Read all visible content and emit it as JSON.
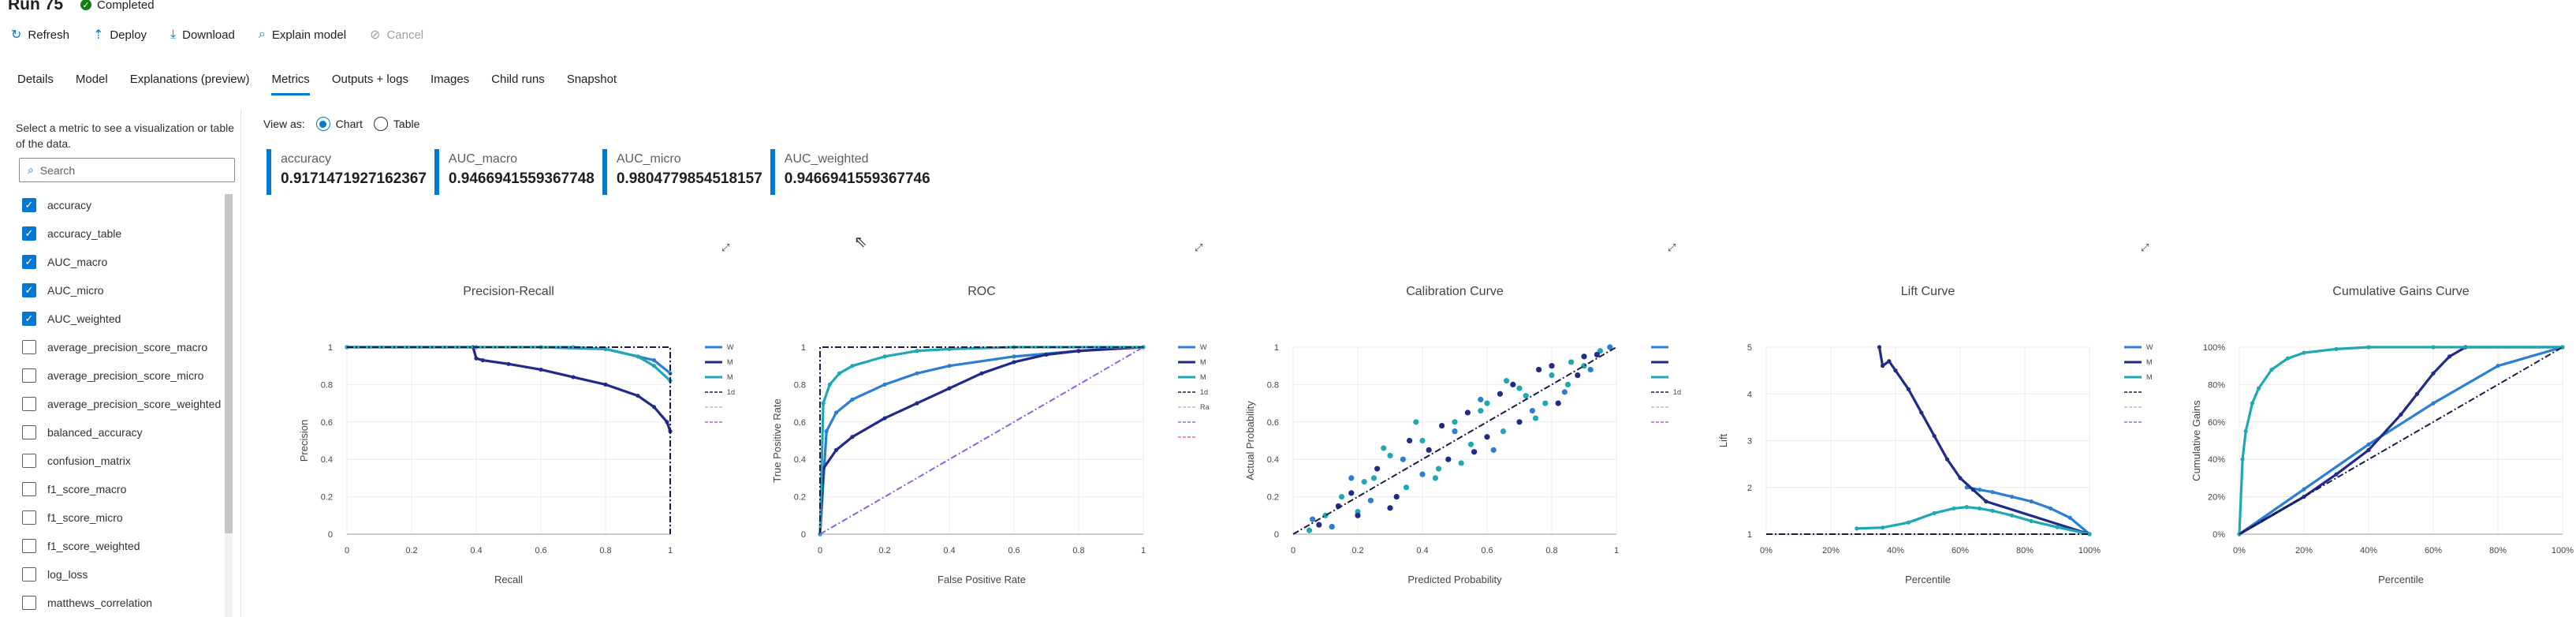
{
  "run": {
    "title": "Run 75",
    "status": "Completed"
  },
  "toolbar": {
    "refresh": "Refresh",
    "deploy": "Deploy",
    "download": "Download",
    "explain": "Explain model",
    "cancel": "Cancel"
  },
  "tabs": [
    "Details",
    "Model",
    "Explanations (preview)",
    "Metrics",
    "Outputs + logs",
    "Images",
    "Child runs",
    "Snapshot"
  ],
  "active_tab": "Metrics",
  "sidebar": {
    "hint": "Select a metric to see a visualization or table of the data.",
    "search_placeholder": "Search",
    "metrics": [
      {
        "label": "accuracy",
        "checked": true
      },
      {
        "label": "accuracy_table",
        "checked": true
      },
      {
        "label": "AUC_macro",
        "checked": true
      },
      {
        "label": "AUC_micro",
        "checked": true
      },
      {
        "label": "AUC_weighted",
        "checked": true
      },
      {
        "label": "average_precision_score_macro",
        "checked": false
      },
      {
        "label": "average_precision_score_micro",
        "checked": false
      },
      {
        "label": "average_precision_score_weighted",
        "checked": false
      },
      {
        "label": "balanced_accuracy",
        "checked": false
      },
      {
        "label": "confusion_matrix",
        "checked": false
      },
      {
        "label": "f1_score_macro",
        "checked": false
      },
      {
        "label": "f1_score_micro",
        "checked": false
      },
      {
        "label": "f1_score_weighted",
        "checked": false
      },
      {
        "label": "log_loss",
        "checked": false
      },
      {
        "label": "matthews_correlation",
        "checked": false
      }
    ]
  },
  "view_as": {
    "label": "View as:",
    "chart": "Chart",
    "table": "Table",
    "selected": "Chart"
  },
  "cards": [
    {
      "label": "accuracy",
      "value": "0.9171471927162367"
    },
    {
      "label": "AUC_macro",
      "value": "0.9466941559367748"
    },
    {
      "label": "AUC_micro",
      "value": "0.9804779854518157"
    },
    {
      "label": "AUC_weighted",
      "value": "0.9466941559367746"
    }
  ],
  "colors": {
    "accent": "#0078d4",
    "dark_blue": "#1f2a8a",
    "teal": "#1fa8b2",
    "mid_blue": "#2a7fd4",
    "purple": "#7b68ee"
  },
  "chart_data": [
    {
      "type": "line",
      "title": "Precision-Recall",
      "xlabel": "Recall",
      "ylabel": "Precision",
      "xticks": [
        "0",
        "0.2",
        "0.4",
        "0.6",
        "0.8",
        "1"
      ],
      "yticks": [
        "0",
        "0.2",
        "0.4",
        "0.6",
        "0.8",
        "1"
      ],
      "xlim": [
        0,
        1
      ],
      "ylim": [
        0,
        1
      ],
      "legend": [
        "W",
        "M",
        "M",
        "1d",
        "",
        ""
      ],
      "series": [
        {
          "color": "#2a7fd4",
          "x": [
            0,
            0.4,
            0.6,
            0.8,
            0.95,
            1.0
          ],
          "y": [
            1,
            1,
            1,
            0.99,
            0.93,
            0.86
          ]
        },
        {
          "color": "#1f2a8a",
          "x": [
            0,
            0.39,
            0.4,
            0.42,
            0.5,
            0.6,
            0.7,
            0.8,
            0.9,
            0.95,
            0.99,
            1.0
          ],
          "y": [
            1,
            1,
            0.94,
            0.93,
            0.91,
            0.88,
            0.84,
            0.8,
            0.74,
            0.68,
            0.6,
            0.55
          ]
        },
        {
          "color": "#1fa8b2",
          "x": [
            0,
            0.6,
            0.7,
            0.8,
            0.9,
            0.95,
            1.0
          ],
          "y": [
            1,
            1,
            1,
            0.99,
            0.95,
            0.9,
            0.82
          ]
        },
        {
          "color": "#1a1a4a",
          "dash": "8,3,2,3",
          "x": [
            0,
            1,
            1
          ],
          "y": [
            1,
            1,
            0
          ]
        }
      ]
    },
    {
      "type": "line",
      "title": "ROC",
      "xlabel": "False Positive Rate",
      "ylabel": "True Positive Rate",
      "xticks": [
        "0",
        "0.2",
        "0.4",
        "0.6",
        "0.8",
        "1"
      ],
      "yticks": [
        "0",
        "0.2",
        "0.4",
        "0.6",
        "0.8",
        "1"
      ],
      "xlim": [
        0,
        1
      ],
      "ylim": [
        0,
        1
      ],
      "legend": [
        "W",
        "M",
        "M",
        "1d",
        "Ra",
        "",
        ""
      ],
      "series": [
        {
          "color": "#2a7fd4",
          "x": [
            0,
            0.02,
            0.05,
            0.1,
            0.2,
            0.3,
            0.4,
            0.6,
            0.8,
            1
          ],
          "y": [
            0,
            0.55,
            0.65,
            0.72,
            0.8,
            0.86,
            0.9,
            0.95,
            0.98,
            1
          ]
        },
        {
          "color": "#1f2a8a",
          "x": [
            0,
            0.01,
            0.05,
            0.1,
            0.2,
            0.3,
            0.4,
            0.5,
            0.6,
            0.7,
            0.8,
            1
          ],
          "y": [
            0,
            0.35,
            0.45,
            0.52,
            0.62,
            0.7,
            0.78,
            0.86,
            0.92,
            0.96,
            0.98,
            1
          ]
        },
        {
          "color": "#1fa8b2",
          "x": [
            0,
            0.01,
            0.03,
            0.06,
            0.1,
            0.2,
            0.3,
            0.4,
            0.6,
            1
          ],
          "y": [
            0,
            0.7,
            0.8,
            0.86,
            0.9,
            0.95,
            0.98,
            0.99,
            1,
            1
          ]
        },
        {
          "color": "#1a1a4a",
          "dash": "8,3,2,3",
          "x": [
            0,
            0,
            1
          ],
          "y": [
            0,
            1,
            1
          ]
        },
        {
          "color": "#7b68ee",
          "dash": "8,3,2,3",
          "x": [
            0,
            1
          ],
          "y": [
            0,
            1
          ]
        }
      ]
    },
    {
      "type": "scatter",
      "title": "Calibration Curve",
      "xlabel": "Predicted Probability",
      "ylabel": "Actual Probability",
      "xticks": [
        "0",
        "0.2",
        "0.4",
        "0.6",
        "0.8",
        "1"
      ],
      "yticks": [
        "0",
        "0.2",
        "0.4",
        "0.6",
        "0.8",
        "1"
      ],
      "xlim": [
        0,
        1
      ],
      "ylim": [
        0,
        1
      ],
      "legend": [
        "",
        "",
        "",
        "1d",
        "",
        ""
      ],
      "series": [
        {
          "color": "#1fa8b2",
          "x": [
            0.05,
            0.1,
            0.15,
            0.2,
            0.25,
            0.3,
            0.35,
            0.4,
            0.45,
            0.5,
            0.55,
            0.6,
            0.65,
            0.7,
            0.75,
            0.8,
            0.85,
            0.9,
            0.95,
            0.22,
            0.38,
            0.52,
            0.66,
            0.78,
            0.12,
            0.28,
            0.44,
            0.58,
            0.72,
            0.86
          ],
          "y": [
            0.02,
            0.1,
            0.2,
            0.12,
            0.3,
            0.42,
            0.25,
            0.5,
            0.35,
            0.6,
            0.48,
            0.7,
            0.55,
            0.78,
            0.62,
            0.85,
            0.8,
            0.9,
            0.98,
            0.28,
            0.6,
            0.38,
            0.82,
            0.7,
            0.04,
            0.46,
            0.3,
            0.66,
            0.74,
            0.92
          ]
        },
        {
          "color": "#1f2a8a",
          "x": [
            0.08,
            0.14,
            0.2,
            0.26,
            0.32,
            0.36,
            0.42,
            0.48,
            0.54,
            0.6,
            0.64,
            0.7,
            0.76,
            0.82,
            0.88,
            0.94,
            0.18,
            0.3,
            0.46,
            0.56,
            0.68,
            0.8,
            0.9
          ],
          "y": [
            0.05,
            0.15,
            0.1,
            0.35,
            0.2,
            0.5,
            0.45,
            0.4,
            0.65,
            0.52,
            0.75,
            0.6,
            0.88,
            0.7,
            0.85,
            0.96,
            0.22,
            0.14,
            0.58,
            0.44,
            0.8,
            0.9,
            0.95
          ]
        },
        {
          "color": "#2a7fd4",
          "x": [
            0.06,
            0.12,
            0.18,
            0.24,
            0.34,
            0.4,
            0.5,
            0.58,
            0.62,
            0.74,
            0.84,
            0.92,
            0.98
          ],
          "y": [
            0.08,
            0.04,
            0.3,
            0.18,
            0.4,
            0.32,
            0.55,
            0.72,
            0.45,
            0.66,
            0.76,
            0.88,
            1.0
          ]
        },
        {
          "color": "#1a1a4a",
          "dash": "8,3,2,3",
          "line": true,
          "x": [
            0,
            1
          ],
          "y": [
            0,
            1
          ]
        }
      ]
    },
    {
      "type": "line",
      "title": "Lift Curve",
      "xlabel": "Percentile",
      "ylabel": "Lift",
      "xticks": [
        "0%",
        "20%",
        "40%",
        "60%",
        "80%",
        "100%"
      ],
      "yticks": [
        "1",
        "2",
        "3",
        "4",
        "5"
      ],
      "xlim": [
        0,
        100
      ],
      "ylim": [
        1,
        5
      ],
      "legend": [
        "W",
        "M",
        "M",
        "",
        "",
        ""
      ],
      "series": [
        {
          "color": "#2a7fd4",
          "x": [
            62,
            66,
            70,
            76,
            82,
            88,
            94,
            100
          ],
          "y": [
            2.0,
            1.95,
            1.9,
            1.8,
            1.7,
            1.55,
            1.35,
            1.0
          ]
        },
        {
          "color": "#1f2a8a",
          "x": [
            35,
            36,
            38,
            40,
            44,
            48,
            52,
            56,
            60,
            64,
            68,
            100
          ],
          "y": [
            5.0,
            4.6,
            4.7,
            4.5,
            4.1,
            3.6,
            3.1,
            2.6,
            2.2,
            1.95,
            1.7,
            1.0
          ]
        },
        {
          "color": "#1fa8b2",
          "x": [
            28,
            36,
            44,
            52,
            58,
            62,
            66,
            70,
            76,
            82,
            90,
            100
          ],
          "y": [
            1.12,
            1.14,
            1.25,
            1.45,
            1.55,
            1.58,
            1.55,
            1.5,
            1.4,
            1.28,
            1.15,
            1.0
          ]
        },
        {
          "color": "#1a1a4a",
          "dash": "8,3,2,3",
          "x": [
            0,
            100
          ],
          "y": [
            1,
            1
          ]
        }
      ]
    },
    {
      "type": "line",
      "title": "Cumulative Gains Curve",
      "xlabel": "Percentile",
      "ylabel": "Cumulative Gains",
      "xticks": [
        "0%",
        "20%",
        "40%",
        "60%",
        "80%",
        "100%"
      ],
      "yticks": [
        "0%",
        "20%",
        "40%",
        "60%",
        "80%",
        "100%"
      ],
      "xlim": [
        0,
        100
      ],
      "ylim": [
        0,
        100
      ],
      "legend": [
        "W",
        "M",
        "M",
        "",
        "",
        ""
      ],
      "series": [
        {
          "color": "#2a7fd4",
          "x": [
            0,
            20,
            40,
            60,
            80,
            100
          ],
          "y": [
            0,
            24,
            48,
            70,
            90,
            100
          ]
        },
        {
          "color": "#1f2a8a",
          "x": [
            0,
            20,
            30,
            40,
            50,
            55,
            60,
            65,
            70,
            100
          ],
          "y": [
            0,
            20,
            32,
            45,
            64,
            75,
            86,
            95,
            100,
            100
          ]
        },
        {
          "color": "#1fa8b2",
          "x": [
            0,
            1,
            2,
            4,
            6,
            10,
            15,
            20,
            30,
            40,
            60,
            100
          ],
          "y": [
            0,
            40,
            55,
            70,
            78,
            88,
            94,
            97,
            99,
            100,
            100,
            100
          ]
        },
        {
          "color": "#1a1a4a",
          "dash": "8,3,2,3",
          "x": [
            0,
            100
          ],
          "y": [
            0,
            100
          ]
        }
      ]
    }
  ]
}
